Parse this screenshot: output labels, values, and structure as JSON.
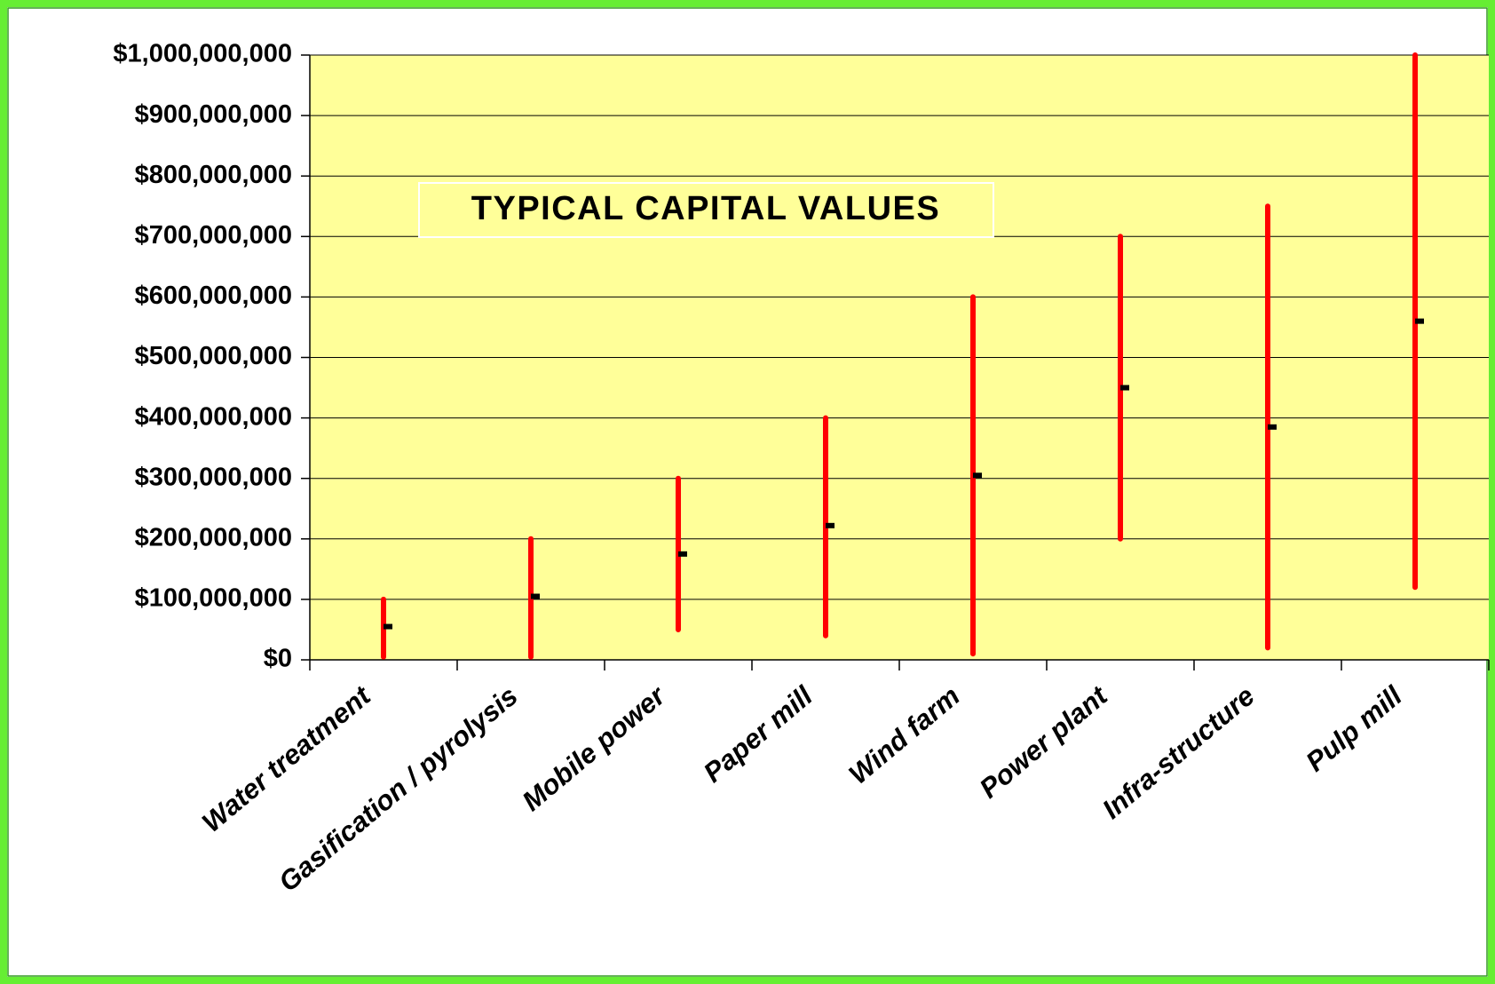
{
  "chart_data": {
    "type": "range",
    "title": "TYPICAL CAPITAL VALUES",
    "categories": [
      "Water treatment",
      "Gasification / pyrolysis",
      "Mobile power",
      "Paper mill",
      "Wind farm",
      "Power plant",
      "Infra-structure",
      "Pulp mill"
    ],
    "low": [
      5000000,
      5000000,
      50000000,
      40000000,
      10000000,
      200000000,
      20000000,
      120000000
    ],
    "high": [
      100000000,
      200000000,
      300000000,
      400000000,
      600000000,
      700000000,
      750000000,
      1000000000
    ],
    "typical": [
      55000000,
      105000000,
      175000000,
      222000000,
      305000000,
      450000000,
      385000000,
      560000000
    ],
    "color": "#ff0000",
    "typical_color": "#000000",
    "plot_background": "#ffff99",
    "ylim": [
      0,
      1000000000
    ],
    "yticks": [
      {
        "value": 0,
        "label": "$0"
      },
      {
        "value": 100000000,
        "label": "$100,000,000"
      },
      {
        "value": 200000000,
        "label": "$200,000,000"
      },
      {
        "value": 300000000,
        "label": "$300,000,000"
      },
      {
        "value": 400000000,
        "label": "$400,000,000"
      },
      {
        "value": 500000000,
        "label": "$500,000,000"
      },
      {
        "value": 600000000,
        "label": "$600,000,000"
      },
      {
        "value": 700000000,
        "label": "$700,000,000"
      },
      {
        "value": 800000000,
        "label": "$800,000,000"
      },
      {
        "value": 900000000,
        "label": "$900,000,000"
      },
      {
        "value": 1000000000,
        "label": "$1,000,000,000"
      }
    ],
    "grid": true
  }
}
